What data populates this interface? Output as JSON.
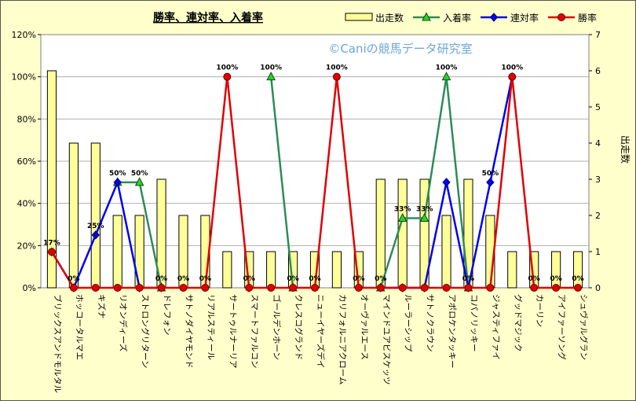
{
  "chart_data": {
    "type": "bar-line-combo",
    "title": "勝率、連対率、入着率",
    "watermark": "©Caniの競馬データ研究室",
    "y2label": "出走数",
    "categories": [
      "ブリックスアンドモルタル",
      "ホッコータルマエ",
      "キズナ",
      "リオンディーズ",
      "ストロングリターン",
      "ドレフォン",
      "サトノダイヤモンド",
      "リアルスティール",
      "サートゥルナーリア",
      "スマートファルコン",
      "ゴールデンホーン",
      "クレスコグランド",
      "ニューイヤーズデイ",
      "カリフォルニアクローム",
      "オーヴァルエース",
      "マインドユアビスケッツ",
      "ルーラーシップ",
      "サトノクラウン",
      "アポロケンタッキー",
      "コパノリッキー",
      "ジャスティファイ",
      "グッドマジック",
      "カーリン",
      "アイファーソング",
      "シュヴァルグラン"
    ],
    "ylim": [
      0,
      120
    ],
    "yticks": [
      "0%",
      "20%",
      "40%",
      "60%",
      "80%",
      "100%",
      "120%"
    ],
    "y2lim": [
      0,
      7
    ],
    "y2ticks": [
      "0",
      "1",
      "2",
      "3",
      "4",
      "5",
      "6",
      "7"
    ],
    "legend_position": "top-right",
    "series": [
      {
        "name": "出走数",
        "kind": "bar",
        "axis": "right",
        "color": "#FFFF99",
        "values": [
          6,
          4,
          4,
          2,
          2,
          3,
          2,
          2,
          1,
          1,
          1,
          1,
          1,
          1,
          1,
          3,
          3,
          3,
          2,
          3,
          2,
          1,
          1,
          1,
          1
        ]
      },
      {
        "name": "入着率",
        "kind": "line",
        "axis": "left",
        "color": "#2E8B57",
        "marker": "triangle",
        "values": [
          null,
          null,
          null,
          50,
          50,
          0,
          null,
          null,
          null,
          null,
          100,
          0,
          null,
          null,
          null,
          0,
          33,
          33,
          100,
          0,
          null,
          null,
          null,
          null,
          null
        ]
      },
      {
        "name": "連対率",
        "kind": "line",
        "axis": "left",
        "color": "#0000EE",
        "marker": "diamond",
        "values": [
          17,
          0,
          25,
          50,
          0,
          0,
          null,
          null,
          null,
          0,
          null,
          null,
          null,
          null,
          null,
          0,
          0,
          0,
          50,
          0,
          50,
          100,
          null,
          null,
          null
        ]
      },
      {
        "name": "勝率",
        "kind": "line",
        "axis": "left",
        "color": "#E00000",
        "marker": "circle",
        "values": [
          17,
          0,
          0,
          0,
          0,
          0,
          0,
          0,
          100,
          0,
          0,
          0,
          0,
          100,
          0,
          0,
          0,
          0,
          0,
          0,
          0,
          100,
          0,
          0,
          0
        ]
      }
    ],
    "data_labels": [
      {
        "index": 0,
        "text": "17%"
      },
      {
        "index": 1,
        "text": "0%"
      },
      {
        "index": 2,
        "text": "25%"
      },
      {
        "index": 3,
        "text": "50%"
      },
      {
        "index": 4,
        "text": "50%"
      },
      {
        "index": 5,
        "text": "0%"
      },
      {
        "index": 6,
        "text": "0%"
      },
      {
        "index": 7,
        "text": "0%"
      },
      {
        "index": 8,
        "text": "100%"
      },
      {
        "index": 9,
        "text": "0%"
      },
      {
        "index": 10,
        "text": "100%"
      },
      {
        "index": 11,
        "text": "0%"
      },
      {
        "index": 12,
        "text": "0%"
      },
      {
        "index": 13,
        "text": "100%"
      },
      {
        "index": 14,
        "text": "0%"
      },
      {
        "index": 15,
        "text": "0%"
      },
      {
        "index": 16,
        "text": "33%"
      },
      {
        "index": 17,
        "text": "33%"
      },
      {
        "index": 18,
        "text": "100%"
      },
      {
        "index": 19,
        "text": "0%"
      },
      {
        "index": 20,
        "text": "50%"
      },
      {
        "index": 21,
        "text": "100%"
      },
      {
        "index": 22,
        "text": "0%"
      },
      {
        "index": 23,
        "text": "0%"
      },
      {
        "index": 24,
        "text": "0%"
      }
    ]
  }
}
